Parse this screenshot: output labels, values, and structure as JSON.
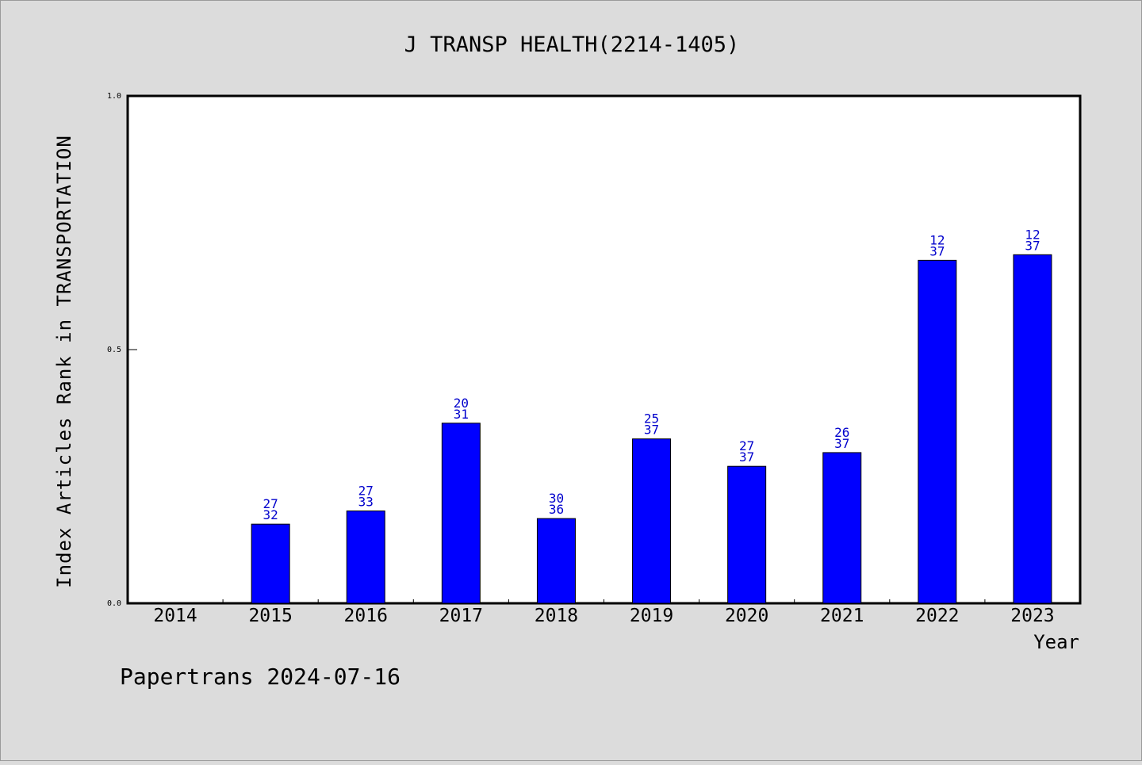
{
  "chart_data": {
    "type": "bar",
    "title": "J TRANSP HEALTH(2214-1405)",
    "xlabel": "Year",
    "ylabel": "Index Articles Rank in TRANSPORTATION",
    "ylim": [
      0.0,
      1.0
    ],
    "yticks": [
      "0.0",
      "0.5",
      "1.0"
    ],
    "categories": [
      "2014",
      "2015",
      "2016",
      "2017",
      "2018",
      "2019",
      "2020",
      "2021",
      "2022",
      "2023"
    ],
    "values": [
      null,
      0.156,
      0.182,
      0.355,
      0.167,
      0.324,
      0.27,
      0.297,
      0.676,
      0.687
    ],
    "labels_top": [
      "",
      "27",
      "27",
      "20",
      "30",
      "25",
      "27",
      "26",
      "12",
      "12"
    ],
    "labels_bottom": [
      "",
      "32",
      "33",
      "31",
      "36",
      "37",
      "37",
      "37",
      "37",
      "37"
    ],
    "bar_color": "#0000ff",
    "label_color": "#0000cc",
    "grid": false,
    "legend": "none"
  },
  "footer": {
    "source": "Papertrans 2024-07-16"
  }
}
